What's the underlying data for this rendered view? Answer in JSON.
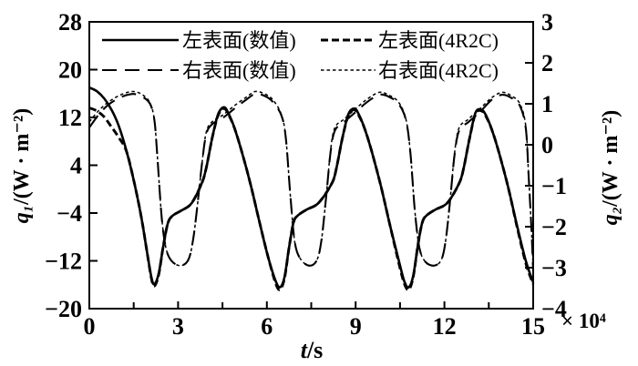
{
  "colors": {
    "ink": "#000000",
    "background": "#ffffff"
  },
  "labels": {
    "y_left_var": "q₁",
    "y_left_rest": "/(W · m⁻²)",
    "y_right_var": "q₂",
    "y_right_rest": "/(W · m⁻²)",
    "x_var": "t",
    "x_rest": "/s",
    "x_multiplier": "× 10⁴"
  },
  "chart_data": {
    "type": "line",
    "title": "",
    "xlabel": "t/s",
    "ylabel_left": "q1/(W·m-2)",
    "ylabel_right": "q2/(W·m-2)",
    "x_multiplier": "×10^4",
    "xlim": [
      0,
      15
    ],
    "ylim_left": [
      -20,
      28
    ],
    "ylim_right": [
      -4,
      3
    ],
    "x_ticks": [
      "0",
      "3",
      "6",
      "9",
      "12",
      "15"
    ],
    "x_tick_values": [
      0,
      3,
      6,
      9,
      12,
      15
    ],
    "x_minor_tick_values": [
      1.5,
      4.5,
      7.5,
      10.5,
      13.5
    ],
    "y_left_ticks": [
      "28",
      "20",
      "12",
      "4",
      "−4",
      "−12",
      "−20"
    ],
    "y_left_tick_values": [
      28,
      20,
      12,
      4,
      -4,
      -12,
      -20
    ],
    "y_right_ticks": [
      "3",
      "2",
      "1",
      "0",
      "−1",
      "−2",
      "−3",
      "−4"
    ],
    "y_right_tick_values": [
      3,
      2,
      1,
      0,
      -1,
      -2,
      -3,
      -4
    ],
    "grid": false,
    "legend_position": "top-inside",
    "legend": [
      {
        "label": "左表面(数值)",
        "style": "solid"
      },
      {
        "label": "左表面(4R2C)",
        "style": "dash_thick"
      },
      {
        "label": "右表面(数值)",
        "style": "dash_long"
      },
      {
        "label": "右表面(4R2C)",
        "style": "dash_fine"
      }
    ],
    "series": [
      {
        "id": "right-surface-numerical",
        "name": "右表面(数值)",
        "axis": "right",
        "style": "dash_long",
        "points": [
          [
            0,
            0.42
          ],
          [
            0.3,
            0.72
          ],
          [
            0.6,
            0.95
          ],
          [
            0.9,
            1.1
          ],
          [
            1.2,
            1.2
          ],
          [
            1.5,
            1.24
          ],
          [
            1.8,
            1.17
          ],
          [
            2.05,
            1.0
          ],
          [
            2.2,
            0.6
          ],
          [
            2.3,
            -0.3
          ],
          [
            2.45,
            -1.8
          ],
          [
            2.6,
            -2.55
          ],
          [
            2.8,
            -2.85
          ],
          [
            3.1,
            -2.95
          ],
          [
            3.35,
            -2.8
          ],
          [
            3.5,
            -2.35
          ],
          [
            3.65,
            -1.5
          ],
          [
            3.8,
            -0.5
          ],
          [
            3.95,
            0.25
          ],
          [
            4.15,
            0.5
          ],
          [
            4.5,
            0.65
          ],
          [
            4.9,
            0.88
          ],
          [
            5.3,
            1.1
          ],
          [
            5.6,
            1.24
          ],
          [
            5.9,
            1.2
          ],
          [
            6.2,
            1.05
          ],
          [
            6.5,
            0.7
          ],
          [
            6.65,
            0.1
          ],
          [
            6.8,
            -1.3
          ],
          [
            6.95,
            -2.4
          ],
          [
            7.15,
            -2.8
          ],
          [
            7.45,
            -2.95
          ],
          [
            7.7,
            -2.8
          ],
          [
            7.85,
            -2.3
          ],
          [
            8.0,
            -1.3
          ],
          [
            8.15,
            -0.2
          ],
          [
            8.3,
            0.35
          ],
          [
            8.6,
            0.55
          ],
          [
            9.0,
            0.8
          ],
          [
            9.4,
            1.05
          ],
          [
            9.8,
            1.22
          ],
          [
            10.1,
            1.18
          ],
          [
            10.45,
            1.0
          ],
          [
            10.7,
            0.6
          ],
          [
            10.85,
            -0.2
          ],
          [
            11.0,
            -1.6
          ],
          [
            11.15,
            -2.5
          ],
          [
            11.35,
            -2.85
          ],
          [
            11.65,
            -2.95
          ],
          [
            11.9,
            -2.8
          ],
          [
            12.05,
            -2.3
          ],
          [
            12.2,
            -1.3
          ],
          [
            12.35,
            -0.2
          ],
          [
            12.5,
            0.35
          ],
          [
            12.8,
            0.55
          ],
          [
            13.2,
            0.8
          ],
          [
            13.6,
            1.1
          ],
          [
            13.95,
            1.22
          ],
          [
            14.25,
            1.15
          ],
          [
            14.55,
            0.95
          ],
          [
            14.75,
            0.4
          ],
          [
            14.85,
            -0.8
          ],
          [
            14.95,
            -2.2
          ],
          [
            15,
            -3.1
          ]
        ]
      },
      {
        "id": "right-surface-4r2c",
        "name": "右表面(4R2C)",
        "axis": "right",
        "style": "dash_fine",
        "points": [
          [
            0,
            0.56
          ],
          [
            0.3,
            0.82
          ],
          [
            0.6,
            1.02
          ],
          [
            0.9,
            1.16
          ],
          [
            1.2,
            1.26
          ],
          [
            1.5,
            1.3
          ],
          [
            1.8,
            1.22
          ],
          [
            2.05,
            1.02
          ],
          [
            2.2,
            0.6
          ],
          [
            2.3,
            -0.3
          ],
          [
            2.45,
            -1.8
          ],
          [
            2.6,
            -2.55
          ],
          [
            2.8,
            -2.85
          ],
          [
            3.1,
            -2.95
          ],
          [
            3.35,
            -2.8
          ],
          [
            3.5,
            -2.35
          ],
          [
            3.65,
            -1.5
          ],
          [
            3.8,
            -0.5
          ],
          [
            3.95,
            0.3
          ],
          [
            4.15,
            0.56
          ],
          [
            4.5,
            0.72
          ],
          [
            4.9,
            0.95
          ],
          [
            5.3,
            1.16
          ],
          [
            5.6,
            1.3
          ],
          [
            5.9,
            1.25
          ],
          [
            6.2,
            1.1
          ],
          [
            6.5,
            0.72
          ],
          [
            6.65,
            0.1
          ],
          [
            6.8,
            -1.3
          ],
          [
            6.95,
            -2.4
          ],
          [
            7.15,
            -2.8
          ],
          [
            7.45,
            -2.95
          ],
          [
            7.7,
            -2.8
          ],
          [
            7.85,
            -2.3
          ],
          [
            8.0,
            -1.3
          ],
          [
            8.15,
            -0.15
          ],
          [
            8.3,
            0.42
          ],
          [
            8.6,
            0.62
          ],
          [
            9.0,
            0.88
          ],
          [
            9.4,
            1.12
          ],
          [
            9.8,
            1.28
          ],
          [
            10.1,
            1.22
          ],
          [
            10.45,
            1.04
          ],
          [
            10.7,
            0.62
          ],
          [
            10.85,
            -0.2
          ],
          [
            11.0,
            -1.6
          ],
          [
            11.15,
            -2.5
          ],
          [
            11.35,
            -2.85
          ],
          [
            11.65,
            -2.95
          ],
          [
            11.9,
            -2.8
          ],
          [
            12.05,
            -2.3
          ],
          [
            12.2,
            -1.3
          ],
          [
            12.35,
            -0.15
          ],
          [
            12.5,
            0.42
          ],
          [
            12.8,
            0.62
          ],
          [
            13.2,
            0.88
          ],
          [
            13.6,
            1.15
          ],
          [
            13.95,
            1.28
          ],
          [
            14.25,
            1.2
          ],
          [
            14.55,
            1.0
          ],
          [
            14.75,
            0.45
          ],
          [
            14.85,
            -0.8
          ],
          [
            14.95,
            -2.2
          ],
          [
            15,
            -3.05
          ]
        ]
      },
      {
        "id": "left-surface-numerical",
        "name": "左表面(数值)",
        "axis": "left",
        "style": "solid",
        "points": [
          [
            0,
            17.0
          ],
          [
            0.25,
            16.4
          ],
          [
            0.5,
            15.2
          ],
          [
            0.75,
            13.3
          ],
          [
            1.0,
            10.5
          ],
          [
            1.25,
            6.5
          ],
          [
            1.5,
            1.5
          ],
          [
            1.75,
            -4.5
          ],
          [
            1.95,
            -10.5
          ],
          [
            2.1,
            -14.8
          ],
          [
            2.2,
            -15.9
          ],
          [
            2.35,
            -14.0
          ],
          [
            2.5,
            -9.5
          ],
          [
            2.65,
            -5.8
          ],
          [
            2.8,
            -4.5
          ],
          [
            3.1,
            -3.6
          ],
          [
            3.45,
            -2.4
          ],
          [
            3.8,
            1.0
          ],
          [
            3.95,
            3.5
          ],
          [
            4.15,
            8.5
          ],
          [
            4.35,
            12.5
          ],
          [
            4.55,
            13.7
          ],
          [
            4.7,
            12.7
          ],
          [
            4.9,
            10.3
          ],
          [
            5.15,
            6.3
          ],
          [
            5.45,
            0.8
          ],
          [
            5.75,
            -5.5
          ],
          [
            6.05,
            -11.5
          ],
          [
            6.3,
            -15.4
          ],
          [
            6.45,
            -16.4
          ],
          [
            6.6,
            -14.6
          ],
          [
            6.75,
            -9.8
          ],
          [
            6.9,
            -5.6
          ],
          [
            7.05,
            -4.4
          ],
          [
            7.35,
            -3.4
          ],
          [
            7.75,
            -2.3
          ],
          [
            8.2,
            1.0
          ],
          [
            8.35,
            3.5
          ],
          [
            8.55,
            8.5
          ],
          [
            8.75,
            12.5
          ],
          [
            8.95,
            13.5
          ],
          [
            9.1,
            12.6
          ],
          [
            9.3,
            10.2
          ],
          [
            9.55,
            6.2
          ],
          [
            9.85,
            0.6
          ],
          [
            10.15,
            -5.8
          ],
          [
            10.45,
            -11.8
          ],
          [
            10.65,
            -15.5
          ],
          [
            10.8,
            -16.4
          ],
          [
            10.95,
            -14.4
          ],
          [
            11.1,
            -9.5
          ],
          [
            11.25,
            -5.6
          ],
          [
            11.4,
            -4.4
          ],
          [
            11.7,
            -3.4
          ],
          [
            12.1,
            -2.3
          ],
          [
            12.5,
            1.0
          ],
          [
            12.65,
            3.5
          ],
          [
            12.85,
            8.5
          ],
          [
            13.05,
            12.8
          ],
          [
            13.25,
            13.3
          ],
          [
            13.4,
            12.4
          ],
          [
            13.6,
            10.0
          ],
          [
            13.85,
            6.0
          ],
          [
            14.15,
            0.4
          ],
          [
            14.45,
            -6.0
          ],
          [
            14.75,
            -12.0
          ],
          [
            15,
            -15.6
          ]
        ]
      },
      {
        "id": "left-surface-4r2c",
        "name": "左表面(4R2C)",
        "axis": "left",
        "style": "dash_thick",
        "points": [
          [
            0,
            13.6
          ],
          [
            0.25,
            13.1
          ],
          [
            0.5,
            12.1
          ],
          [
            0.75,
            10.4
          ],
          [
            1.0,
            8.6
          ],
          [
            1.25,
            6.4
          ],
          [
            1.5,
            1.5
          ],
          [
            1.75,
            -4.5
          ],
          [
            1.95,
            -10.5
          ],
          [
            2.1,
            -15.0
          ],
          [
            2.2,
            -16.2
          ],
          [
            2.35,
            -14.2
          ],
          [
            2.5,
            -9.5
          ],
          [
            2.65,
            -5.8
          ],
          [
            2.8,
            -4.5
          ],
          [
            3.1,
            -3.6
          ],
          [
            3.45,
            -2.4
          ],
          [
            3.8,
            1.0
          ],
          [
            3.95,
            3.5
          ],
          [
            4.15,
            8.5
          ],
          [
            4.35,
            12.3
          ],
          [
            4.55,
            13.5
          ],
          [
            4.7,
            12.5
          ],
          [
            4.9,
            10.3
          ],
          [
            5.15,
            6.3
          ],
          [
            5.45,
            0.8
          ],
          [
            5.75,
            -5.5
          ],
          [
            6.05,
            -11.5
          ],
          [
            6.3,
            -15.8
          ],
          [
            6.45,
            -16.8
          ],
          [
            6.6,
            -14.8
          ],
          [
            6.75,
            -9.8
          ],
          [
            6.9,
            -5.6
          ],
          [
            7.05,
            -4.4
          ],
          [
            7.35,
            -3.4
          ],
          [
            7.75,
            -2.3
          ],
          [
            8.2,
            1.0
          ],
          [
            8.35,
            3.5
          ],
          [
            8.55,
            8.5
          ],
          [
            8.75,
            12.3
          ],
          [
            8.95,
            13.3
          ],
          [
            9.1,
            12.4
          ],
          [
            9.3,
            10.2
          ],
          [
            9.55,
            6.2
          ],
          [
            9.85,
            0.6
          ],
          [
            10.15,
            -5.8
          ],
          [
            10.45,
            -12.2
          ],
          [
            10.65,
            -15.9
          ],
          [
            10.8,
            -16.8
          ],
          [
            10.95,
            -14.6
          ],
          [
            11.1,
            -9.5
          ],
          [
            11.25,
            -5.6
          ],
          [
            11.4,
            -4.4
          ],
          [
            11.7,
            -3.4
          ],
          [
            12.1,
            -2.3
          ],
          [
            12.5,
            1.0
          ],
          [
            12.65,
            3.5
          ],
          [
            12.85,
            8.5
          ],
          [
            13.05,
            12.6
          ],
          [
            13.25,
            13.1
          ],
          [
            13.4,
            12.2
          ],
          [
            13.6,
            10.0
          ],
          [
            13.85,
            6.0
          ],
          [
            14.15,
            0.4
          ],
          [
            14.45,
            -6.2
          ],
          [
            14.75,
            -12.4
          ],
          [
            15,
            -15.9
          ]
        ]
      }
    ]
  }
}
